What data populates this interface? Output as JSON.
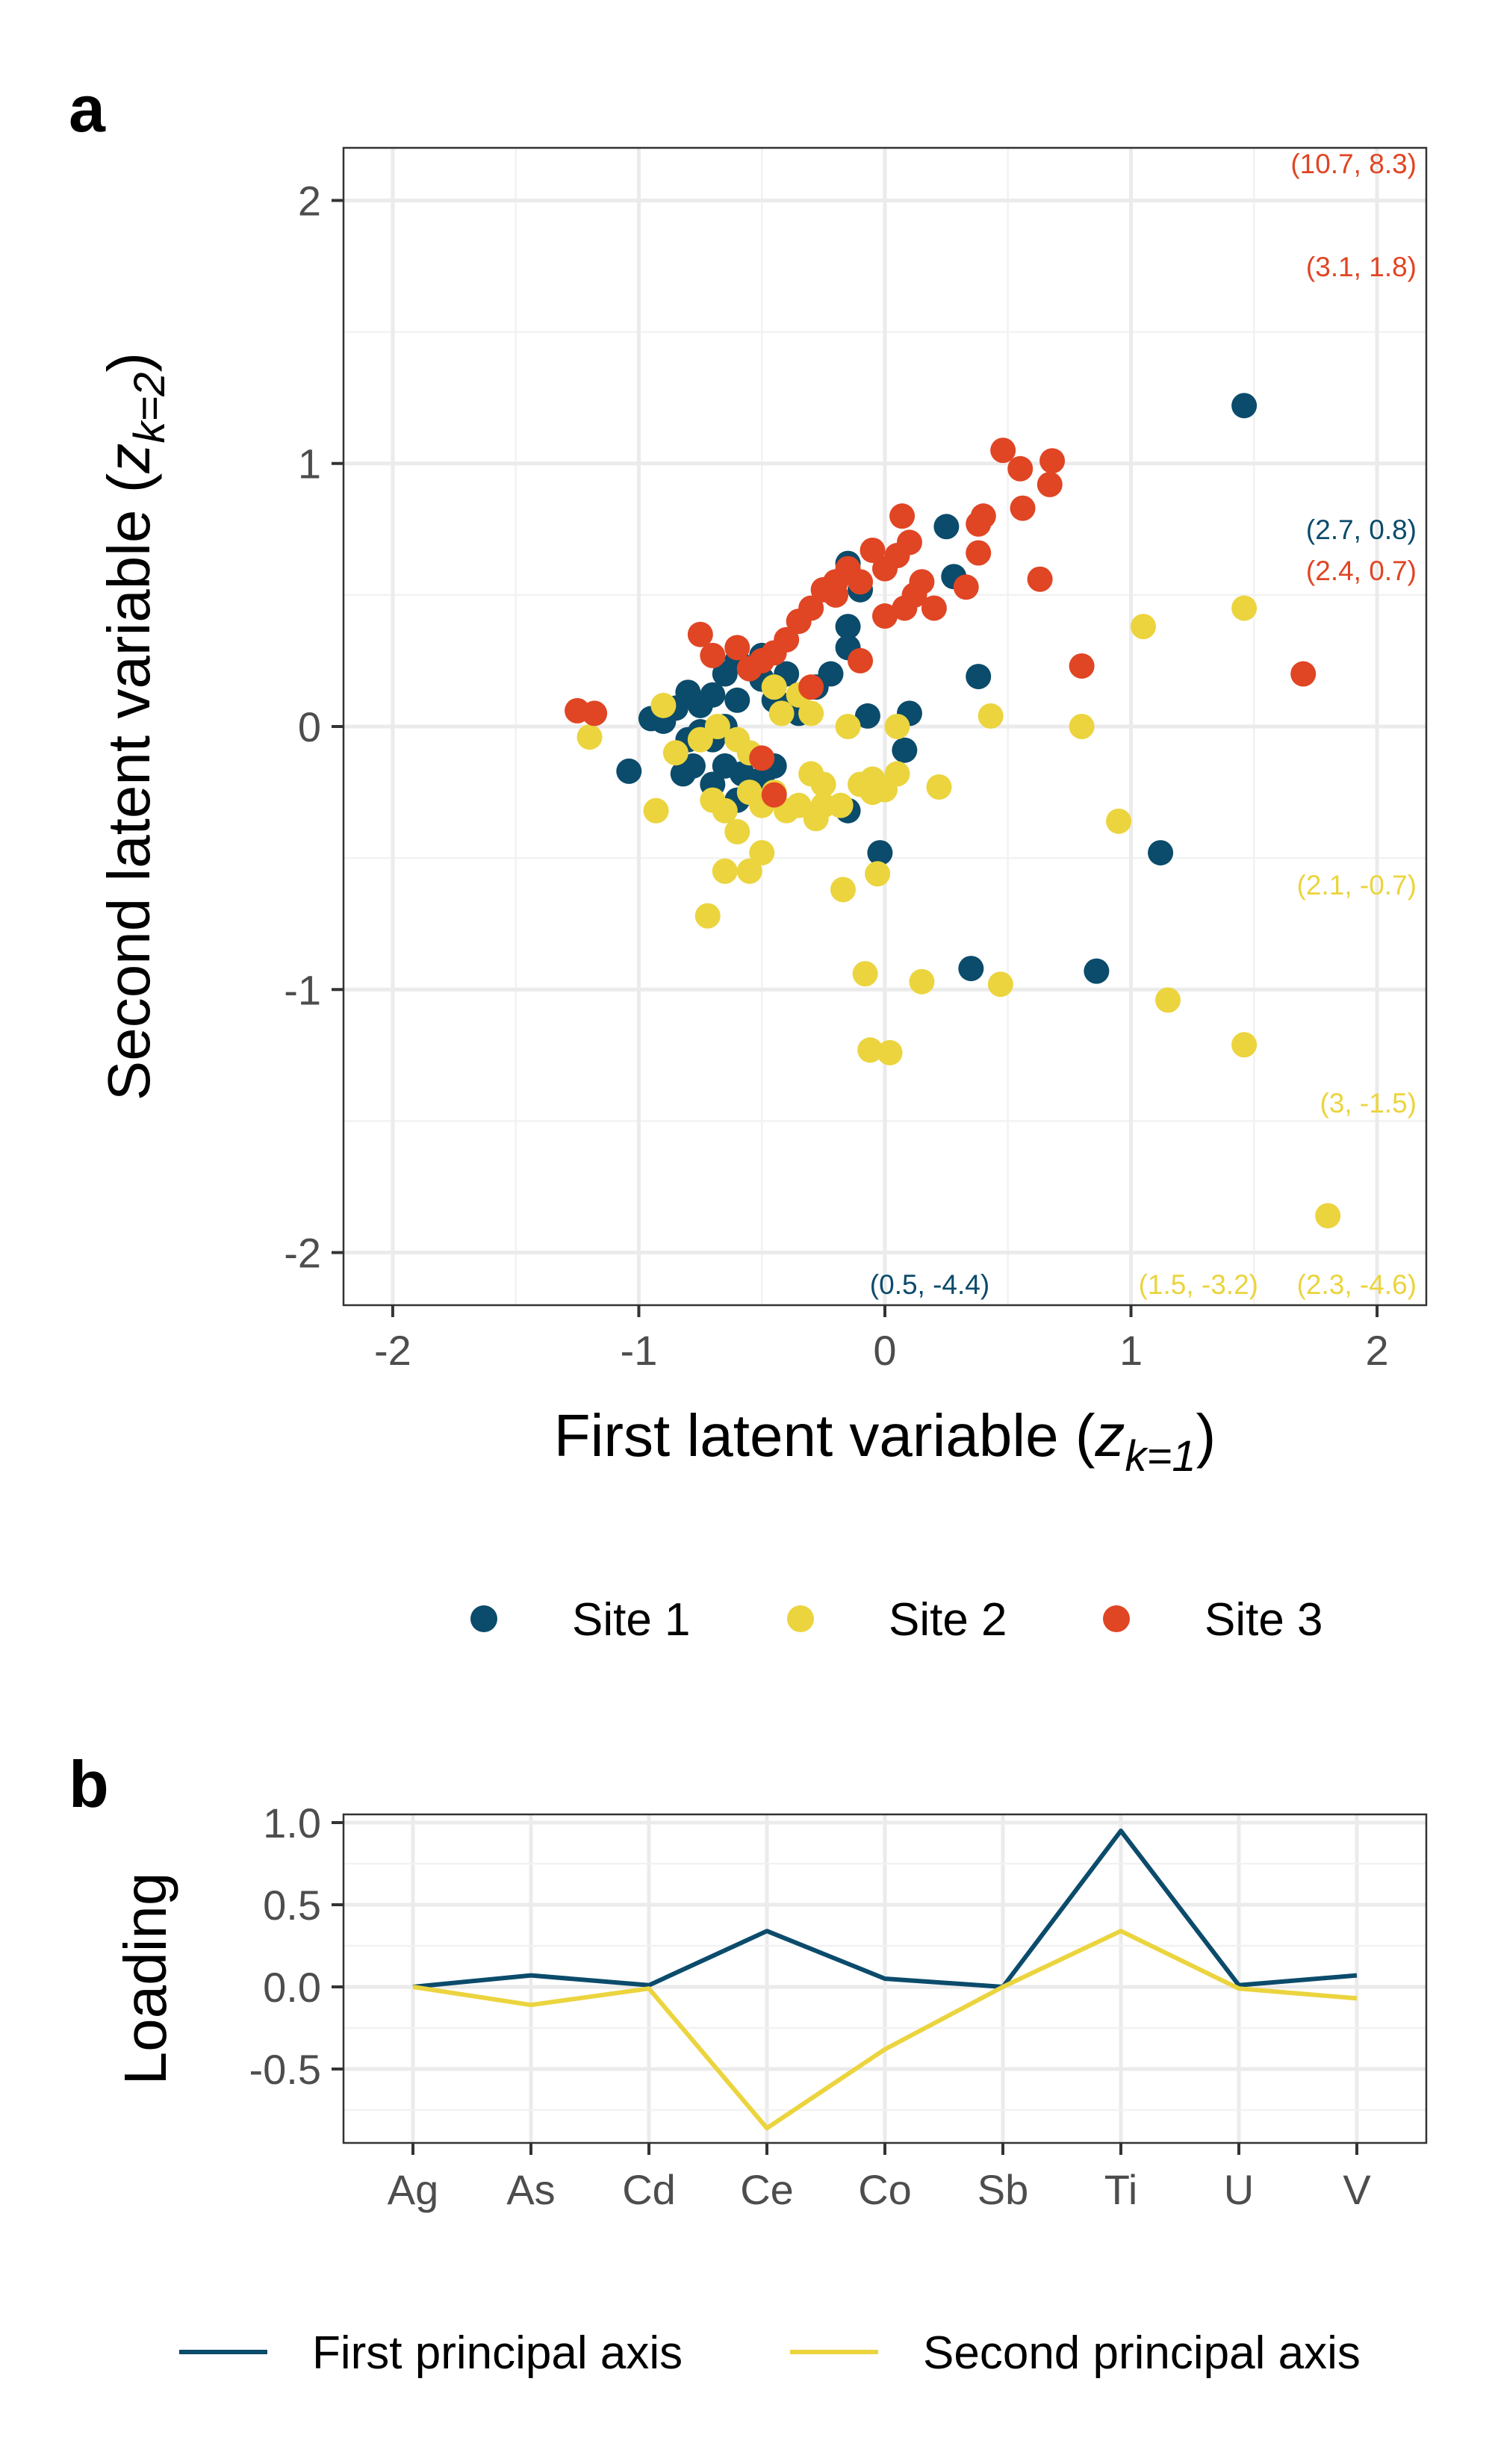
{
  "colors": {
    "site1": "#0b4b6b",
    "site2": "#ebd43e",
    "site3": "#e04524",
    "axis1": "#0b4b6b",
    "axis2": "#ebd43e"
  },
  "chart_data": [
    {
      "type": "scatter",
      "panel": "a",
      "title": "",
      "xlabel_main": "First latent variable (",
      "xlabel_sym": "z",
      "xlabel_sub": "k=1",
      "xlabel_end": ")",
      "ylabel_main": "Second latent variable (",
      "ylabel_sym": "z",
      "ylabel_sub": "k=2",
      "ylabel_end": ")",
      "xlim": [
        -2.2,
        2.2
      ],
      "ylim": [
        -2.2,
        2.2
      ],
      "x_ticks": [
        -2,
        -1,
        0,
        1,
        2
      ],
      "y_ticks": [
        -2,
        -1,
        0,
        1,
        2
      ],
      "x_tick_labels": [
        "-2",
        "-1",
        "0",
        "1",
        "2"
      ],
      "y_tick_labels": [
        "-2",
        "-1",
        "0",
        "1",
        "2"
      ],
      "grid": true,
      "legend_position": "bottom",
      "series": [
        {
          "name": "Site 1",
          "color_key": "site1",
          "points": [
            [
              1.46,
              1.22
            ],
            [
              0.25,
              0.76
            ],
            [
              0.28,
              0.57
            ],
            [
              0.1,
              0.05
            ],
            [
              0.08,
              -0.09
            ],
            [
              0.38,
              0.19
            ],
            [
              -0.02,
              -0.48
            ],
            [
              1.12,
              -0.48
            ],
            [
              0.35,
              -0.92
            ],
            [
              0.86,
              -0.93
            ],
            [
              -0.07,
              0.04
            ],
            [
              -0.15,
              0.62
            ],
            [
              -0.1,
              0.52
            ],
            [
              -0.15,
              0.38
            ],
            [
              -0.15,
              0.3
            ],
            [
              -0.22,
              0.2
            ],
            [
              -0.28,
              0.15
            ],
            [
              -0.35,
              0.05
            ],
            [
              -0.4,
              0.2
            ],
            [
              -0.45,
              0.1
            ],
            [
              -0.5,
              0.18
            ],
            [
              -0.5,
              0.27
            ],
            [
              -0.55,
              0.22
            ],
            [
              -0.6,
              0.25
            ],
            [
              -0.65,
              0.2
            ],
            [
              -0.6,
              0.1
            ],
            [
              -0.65,
              0.0
            ],
            [
              -0.7,
              0.12
            ],
            [
              -0.75,
              0.08
            ],
            [
              -0.8,
              0.13
            ],
            [
              -0.85,
              0.07
            ],
            [
              -0.9,
              0.02
            ],
            [
              -0.95,
              0.03
            ],
            [
              -0.75,
              -0.02
            ],
            [
              -0.8,
              -0.05
            ],
            [
              -0.7,
              -0.05
            ],
            [
              -0.78,
              -0.15
            ],
            [
              -0.82,
              -0.18
            ],
            [
              -0.7,
              -0.22
            ],
            [
              -0.65,
              -0.15
            ],
            [
              -0.6,
              -0.28
            ],
            [
              -0.58,
              -0.18
            ],
            [
              -0.5,
              -0.2
            ],
            [
              -0.45,
              -0.15
            ],
            [
              -1.04,
              -0.17
            ],
            [
              -0.15,
              -0.32
            ],
            [
              -0.4,
              0.08
            ]
          ]
        },
        {
          "name": "Site 2",
          "color_key": "site2",
          "points": [
            [
              1.46,
              0.45
            ],
            [
              1.05,
              0.38
            ],
            [
              0.8,
              0.0
            ],
            [
              0.95,
              -0.36
            ],
            [
              0.43,
              0.04
            ],
            [
              0.05,
              0.0
            ],
            [
              0.05,
              -0.18
            ],
            [
              0.22,
              -0.23
            ],
            [
              -0.05,
              -0.2
            ],
            [
              -0.1,
              -0.22
            ],
            [
              -0.05,
              -0.25
            ],
            [
              0.0,
              -0.24
            ],
            [
              -0.18,
              -0.3
            ],
            [
              -0.25,
              -0.22
            ],
            [
              -0.28,
              -0.35
            ],
            [
              -0.35,
              -0.3
            ],
            [
              -0.4,
              -0.32
            ],
            [
              -0.45,
              -0.25
            ],
            [
              -0.5,
              -0.3
            ],
            [
              -0.55,
              -0.25
            ],
            [
              -0.6,
              -0.4
            ],
            [
              -0.65,
              -0.32
            ],
            [
              -0.7,
              -0.28
            ],
            [
              -0.65,
              -0.55
            ],
            [
              -0.55,
              -0.55
            ],
            [
              -0.5,
              -0.48
            ],
            [
              -0.72,
              -0.72
            ],
            [
              -0.93,
              -0.32
            ],
            [
              -0.17,
              -0.62
            ],
            [
              -0.03,
              -0.56
            ],
            [
              -0.08,
              -0.94
            ],
            [
              0.15,
              -0.97
            ],
            [
              0.47,
              -0.98
            ],
            [
              1.15,
              -1.04
            ],
            [
              1.46,
              -1.21
            ],
            [
              -0.06,
              -1.23
            ],
            [
              0.02,
              -1.24
            ],
            [
              1.8,
              -1.86
            ],
            [
              -1.2,
              -0.04
            ],
            [
              -0.9,
              0.08
            ],
            [
              -0.3,
              0.05
            ],
            [
              -0.35,
              0.12
            ],
            [
              -0.42,
              0.05
            ],
            [
              -0.6,
              -0.05
            ],
            [
              -0.85,
              -0.1
            ],
            [
              -0.75,
              -0.05
            ],
            [
              -0.68,
              0.0
            ],
            [
              -0.55,
              -0.1
            ],
            [
              -0.3,
              -0.18
            ],
            [
              -0.25,
              -0.3
            ],
            [
              -0.15,
              0.0
            ],
            [
              -0.45,
              0.15
            ]
          ]
        },
        {
          "name": "Site 3",
          "color_key": "site3",
          "points": [
            [
              0.48,
              1.05
            ],
            [
              0.55,
              0.98
            ],
            [
              0.68,
              1.01
            ],
            [
              0.67,
              0.92
            ],
            [
              0.56,
              0.83
            ],
            [
              0.4,
              0.8
            ],
            [
              0.38,
              0.77
            ],
            [
              0.07,
              0.8
            ],
            [
              0.1,
              0.7
            ],
            [
              0.05,
              0.65
            ],
            [
              0.38,
              0.66
            ],
            [
              0.0,
              0.6
            ],
            [
              -0.05,
              0.67
            ],
            [
              -0.1,
              0.55
            ],
            [
              -0.15,
              0.6
            ],
            [
              -0.2,
              0.5
            ],
            [
              -0.25,
              0.52
            ],
            [
              -0.3,
              0.45
            ],
            [
              -0.35,
              0.4
            ],
            [
              -0.4,
              0.33
            ],
            [
              -0.45,
              0.28
            ],
            [
              -0.5,
              0.25
            ],
            [
              -0.55,
              0.22
            ],
            [
              -0.6,
              0.3
            ],
            [
              -0.7,
              0.27
            ],
            [
              -0.75,
              0.35
            ],
            [
              0.2,
              0.45
            ],
            [
              0.15,
              0.55
            ],
            [
              0.08,
              0.45
            ],
            [
              0.0,
              0.42
            ],
            [
              0.33,
              0.53
            ],
            [
              0.63,
              0.56
            ],
            [
              0.8,
              0.23
            ],
            [
              1.7,
              0.2
            ],
            [
              -0.3,
              0.15
            ],
            [
              -0.1,
              0.25
            ],
            [
              -0.5,
              -0.12
            ],
            [
              -0.45,
              -0.26
            ],
            [
              -1.25,
              0.06
            ],
            [
              -1.18,
              0.05
            ],
            [
              -0.2,
              0.55
            ],
            [
              0.12,
              0.5
            ]
          ]
        }
      ],
      "annotations": [
        {
          "text": "(10.7, 8.3)",
          "color_key": "site3",
          "pos": "top-right"
        },
        {
          "text": "(3.1, 1.8)",
          "color_key": "site3",
          "pos": "right"
        },
        {
          "text": "(2.7, 0.8)",
          "color_key": "site1",
          "pos": "right"
        },
        {
          "text": "(2.4, 0.7)",
          "color_key": "site3",
          "pos": "right"
        },
        {
          "text": "(2.1, -0.7)",
          "color_key": "site2",
          "pos": "right"
        },
        {
          "text": "(3, -1.5)",
          "color_key": "site2",
          "pos": "right"
        },
        {
          "text": "(0.5, -4.4)",
          "color_key": "site1",
          "pos": "bottom"
        },
        {
          "text": "(1.5, -3.2)",
          "color_key": "site2",
          "pos": "bottom-right"
        },
        {
          "text": "(2.3, -4.6)",
          "color_key": "site2",
          "pos": "bottom-right"
        }
      ]
    },
    {
      "type": "line",
      "panel": "b",
      "title": "",
      "xlabel": "",
      "ylabel": "Loading",
      "categories": [
        "Ag",
        "As",
        "Cd",
        "Ce",
        "Co",
        "Sb",
        "Ti",
        "U",
        "V"
      ],
      "ylim": [
        -0.95,
        1.05
      ],
      "y_ticks": [
        1.0,
        0.5,
        0.0,
        -0.5
      ],
      "y_tick_labels": [
        "1.0",
        "0.5",
        "0.0",
        "-0.5"
      ],
      "grid": true,
      "legend_position": "bottom",
      "series": [
        {
          "name": "First principal axis",
          "color_key": "axis1",
          "values": [
            0.0,
            0.07,
            0.01,
            0.34,
            0.05,
            0.0,
            0.95,
            0.01,
            0.07
          ]
        },
        {
          "name": "Second principal axis",
          "color_key": "axis2",
          "values": [
            0.0,
            -0.11,
            -0.01,
            -0.86,
            -0.38,
            0.0,
            0.34,
            -0.01,
            -0.07
          ]
        }
      ]
    }
  ]
}
